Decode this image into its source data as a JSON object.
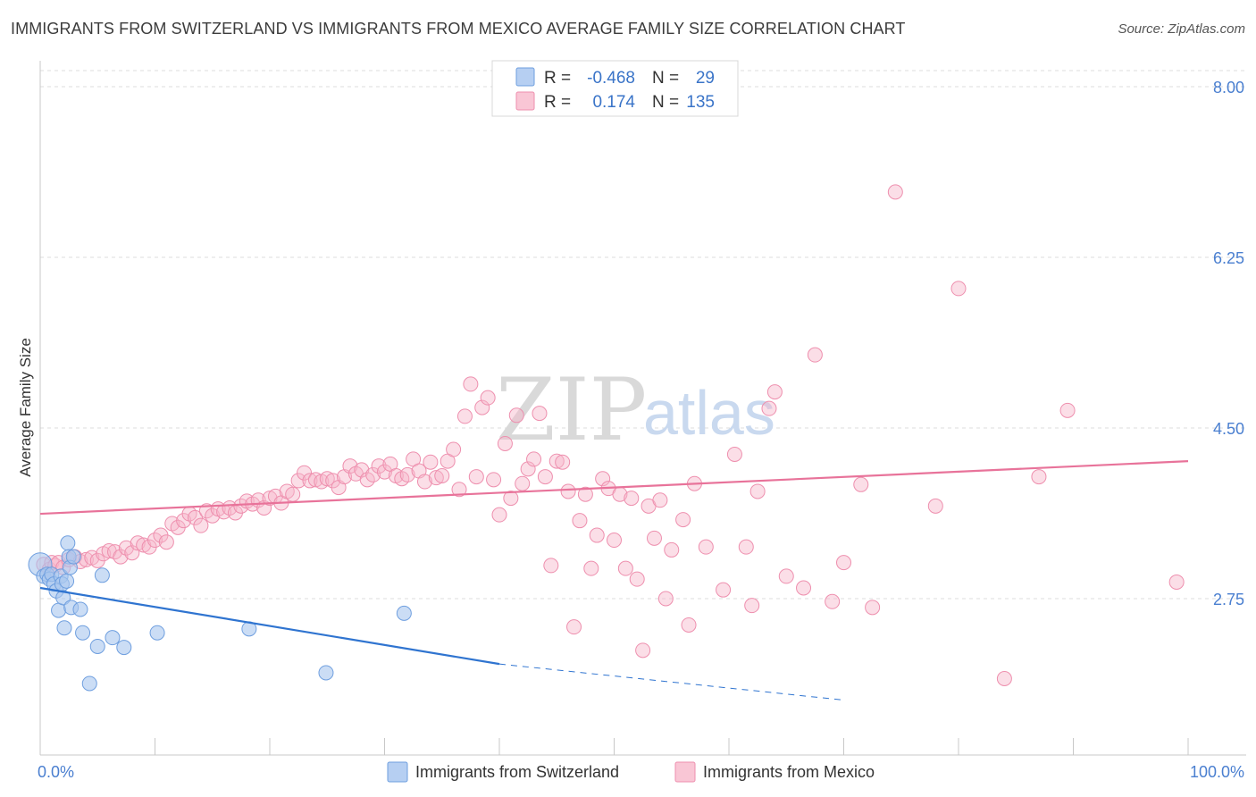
{
  "header": {
    "title": "IMMIGRANTS FROM SWITZERLAND VS IMMIGRANTS FROM MEXICO AVERAGE FAMILY SIZE CORRELATION CHART",
    "source": "Source: ZipAtlas.com"
  },
  "watermark": {
    "zip": "ZIP",
    "atlas": "atlas"
  },
  "colors": {
    "switzerland_fill": "#a9c6ef",
    "switzerland_stroke": "#6f9fdf",
    "switzerland_line": "#2f74d0",
    "mexico_fill": "#f7b6ca",
    "mexico_stroke": "#ee8fae",
    "mexico_line": "#e8739a",
    "tick_text": "#4a7fd0",
    "grid": "#dcdcdc"
  },
  "stats": {
    "r_label": "R =",
    "n_label": "N =",
    "rows": [
      {
        "r": "-0.468",
        "n": "29"
      },
      {
        "r": "0.174",
        "n": "135"
      }
    ]
  },
  "chart_data": {
    "type": "scatter",
    "title": "IMMIGRANTS FROM SWITZERLAND VS IMMIGRANTS FROM MEXICO AVERAGE FAMILY SIZE CORRELATION CHART",
    "xlabel": "",
    "ylabel": "Average Family Size",
    "xlim": [
      0,
      100
    ],
    "ylim": [
      1.7,
      8.25
    ],
    "x_tick_labels": [
      "0.0%",
      "100.0%"
    ],
    "y_ticks": [
      2.75,
      4.5,
      6.25,
      8.0
    ],
    "y_tick_labels": [
      "2.75",
      "4.50",
      "6.25",
      "8.00"
    ],
    "grid": true,
    "legend_position": "bottom-center",
    "series": [
      {
        "name": "Immigrants from Switzerland",
        "trend": {
          "x": [
            0,
            40
          ],
          "y": [
            2.86,
            2.08
          ],
          "dashed_to": {
            "x": [
              40,
              70
            ],
            "y": [
              2.08,
              1.71
            ]
          }
        },
        "points": [
          [
            0,
            3.1
          ],
          [
            0.3,
            2.98
          ],
          [
            0.6,
            3.0
          ],
          [
            0.8,
            2.95
          ],
          [
            1.0,
            3.0
          ],
          [
            1.2,
            2.9
          ],
          [
            1.4,
            2.83
          ],
          [
            1.6,
            2.63
          ],
          [
            1.8,
            2.98
          ],
          [
            1.9,
            2.9
          ],
          [
            2.0,
            2.76
          ],
          [
            2.1,
            2.45
          ],
          [
            2.3,
            2.93
          ],
          [
            2.4,
            3.32
          ],
          [
            2.5,
            3.18
          ],
          [
            2.6,
            3.07
          ],
          [
            2.7,
            2.66
          ],
          [
            2.9,
            3.18
          ],
          [
            3.5,
            2.64
          ],
          [
            3.7,
            2.4
          ],
          [
            4.3,
            1.88
          ],
          [
            5.0,
            2.26
          ],
          [
            5.4,
            2.99
          ],
          [
            6.3,
            2.35
          ],
          [
            7.3,
            2.25
          ],
          [
            10.2,
            2.4
          ],
          [
            18.2,
            2.44
          ],
          [
            24.9,
            1.99
          ],
          [
            31.7,
            2.6
          ]
        ]
      },
      {
        "name": "Immigrants from Mexico",
        "trend": {
          "x": [
            0,
            100
          ],
          "y": [
            3.62,
            4.16
          ]
        },
        "points": [
          [
            0.3,
            3.1
          ],
          [
            0.8,
            3.05
          ],
          [
            1.0,
            3.12
          ],
          [
            1.3,
            3.09
          ],
          [
            1.6,
            3.12
          ],
          [
            2.0,
            3.07
          ],
          [
            2.5,
            3.15
          ],
          [
            3.0,
            3.18
          ],
          [
            3.5,
            3.13
          ],
          [
            4.0,
            3.15
          ],
          [
            4.5,
            3.17
          ],
          [
            5.0,
            3.14
          ],
          [
            5.5,
            3.21
          ],
          [
            6.0,
            3.24
          ],
          [
            6.5,
            3.23
          ],
          [
            7.0,
            3.18
          ],
          [
            7.5,
            3.27
          ],
          [
            8.0,
            3.22
          ],
          [
            8.5,
            3.32
          ],
          [
            9.0,
            3.3
          ],
          [
            9.5,
            3.28
          ],
          [
            10.0,
            3.35
          ],
          [
            10.5,
            3.4
          ],
          [
            11.0,
            3.33
          ],
          [
            11.5,
            3.52
          ],
          [
            12.0,
            3.48
          ],
          [
            12.5,
            3.55
          ],
          [
            13.0,
            3.62
          ],
          [
            13.5,
            3.58
          ],
          [
            14.0,
            3.5
          ],
          [
            14.5,
            3.65
          ],
          [
            15.0,
            3.6
          ],
          [
            15.5,
            3.67
          ],
          [
            16.0,
            3.64
          ],
          [
            16.5,
            3.68
          ],
          [
            17.0,
            3.63
          ],
          [
            17.5,
            3.7
          ],
          [
            18.0,
            3.75
          ],
          [
            18.5,
            3.72
          ],
          [
            19.0,
            3.76
          ],
          [
            19.5,
            3.68
          ],
          [
            20.0,
            3.78
          ],
          [
            20.5,
            3.8
          ],
          [
            21.0,
            3.73
          ],
          [
            21.5,
            3.85
          ],
          [
            22.0,
            3.82
          ],
          [
            22.5,
            3.96
          ],
          [
            23.0,
            4.04
          ],
          [
            23.5,
            3.96
          ],
          [
            24.0,
            3.97
          ],
          [
            24.5,
            3.95
          ],
          [
            25.0,
            3.98
          ],
          [
            25.5,
            3.96
          ],
          [
            26.0,
            3.89
          ],
          [
            26.5,
            4.0
          ],
          [
            27.0,
            4.11
          ],
          [
            27.5,
            4.03
          ],
          [
            28.0,
            4.07
          ],
          [
            28.5,
            3.97
          ],
          [
            29.0,
            4.02
          ],
          [
            29.5,
            4.11
          ],
          [
            30.0,
            4.05
          ],
          [
            30.5,
            4.13
          ],
          [
            31.0,
            4.01
          ],
          [
            31.5,
            3.98
          ],
          [
            32.0,
            4.02
          ],
          [
            32.5,
            4.18
          ],
          [
            33.0,
            4.06
          ],
          [
            33.5,
            3.95
          ],
          [
            34.0,
            4.15
          ],
          [
            34.5,
            3.99
          ],
          [
            35.0,
            4.01
          ],
          [
            35.5,
            4.16
          ],
          [
            36.0,
            4.28
          ],
          [
            36.5,
            3.87
          ],
          [
            37.0,
            4.62
          ],
          [
            37.5,
            4.95
          ],
          [
            38.0,
            4.0
          ],
          [
            38.5,
            4.71
          ],
          [
            39.0,
            4.81
          ],
          [
            39.5,
            3.97
          ],
          [
            40.0,
            3.61
          ],
          [
            40.5,
            4.34
          ],
          [
            41.0,
            3.78
          ],
          [
            41.5,
            4.63
          ],
          [
            42.0,
            3.93
          ],
          [
            42.5,
            4.08
          ],
          [
            43.0,
            4.18
          ],
          [
            43.5,
            4.65
          ],
          [
            44.0,
            4.0
          ],
          [
            44.5,
            3.09
          ],
          [
            45.0,
            4.16
          ],
          [
            45.5,
            4.15
          ],
          [
            46.0,
            3.85
          ],
          [
            46.5,
            2.46
          ],
          [
            47.0,
            3.55
          ],
          [
            47.5,
            3.82
          ],
          [
            48.0,
            3.06
          ],
          [
            48.5,
            3.4
          ],
          [
            49.0,
            3.98
          ],
          [
            49.5,
            3.88
          ],
          [
            50.0,
            3.35
          ],
          [
            50.5,
            3.82
          ],
          [
            51.0,
            3.06
          ],
          [
            51.5,
            3.78
          ],
          [
            52.0,
            2.95
          ],
          [
            52.5,
            2.22
          ],
          [
            53.0,
            3.7
          ],
          [
            53.5,
            3.37
          ],
          [
            54.0,
            3.76
          ],
          [
            54.5,
            2.75
          ],
          [
            55.0,
            3.25
          ],
          [
            56.0,
            3.56
          ],
          [
            57.0,
            3.93
          ],
          [
            58.0,
            3.28
          ],
          [
            59.5,
            2.84
          ],
          [
            60.5,
            4.23
          ],
          [
            61.5,
            3.28
          ],
          [
            62.5,
            3.85
          ],
          [
            63.5,
            4.7
          ],
          [
            64.0,
            4.87
          ],
          [
            65.0,
            2.98
          ],
          [
            66.5,
            2.86
          ],
          [
            67.5,
            5.25
          ],
          [
            69.0,
            2.72
          ],
          [
            70.0,
            3.12
          ],
          [
            71.5,
            3.92
          ],
          [
            72.5,
            2.66
          ],
          [
            74.5,
            6.92
          ],
          [
            78.0,
            3.7
          ],
          [
            80.0,
            5.93
          ],
          [
            84.0,
            1.93
          ],
          [
            87.0,
            4.0
          ],
          [
            89.5,
            4.68
          ],
          [
            99.0,
            2.92
          ],
          [
            62.0,
            2.68
          ],
          [
            56.5,
            2.48
          ]
        ]
      }
    ]
  },
  "legend": {
    "items": [
      {
        "label": "Immigrants from Switzerland"
      },
      {
        "label": "Immigrants from Mexico"
      }
    ]
  }
}
